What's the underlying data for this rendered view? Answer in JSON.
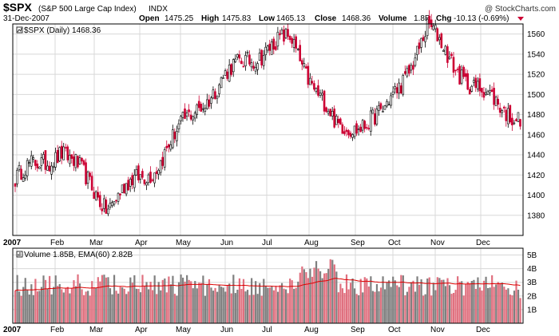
{
  "header": {
    "symbol": "$SPX",
    "name": "(S&P 500 Large Cap Index)",
    "exchange": "INDX",
    "date": "31-Dec-2007",
    "watermark": "@ StockCharts.com",
    "open_label": "Open",
    "open_value": "1475.25",
    "high_label": "High",
    "high_value": "1475.83",
    "low_label": "Low",
    "low_value": "1465.13",
    "close_label": "Close",
    "close_value": "1468.36",
    "volume_label": "Volume",
    "volume_value": "1.8B",
    "chg_label": "Chg",
    "chg_value": "-10.13 (-0.69%)"
  },
  "price_legend": "$SPX (Daily) 1468.36",
  "volume_legend": "Volume 1.85B, EMA(60) 2.82B",
  "colors": {
    "up": "#000000",
    "down": "#cc0033",
    "vol_up": "#7f7f7f",
    "vol_down": "#e0707f",
    "ema": "#dd0000",
    "grid": "#d8d8d8",
    "frame": "#000000"
  },
  "chart_data": [
    {
      "type": "candlestick",
      "title": "$SPX (Daily) 1468.36",
      "series": "$SPX",
      "ylim": [
        1360,
        1570
      ],
      "y_ticks": [
        "1380",
        "1400",
        "1420",
        "1440",
        "1460",
        "1480",
        "1500",
        "1520",
        "1540",
        "1560"
      ],
      "x_ticks": [
        "2007",
        "Feb",
        "Mar",
        "Apr",
        "May",
        "Jun",
        "Jul",
        "Aug",
        "Sep",
        "Oct",
        "Nov",
        "Dec"
      ],
      "grid": true,
      "monthly_anchor_closes": [
        {
          "month": "Jan",
          "close": 1416
        },
        {
          "month": "Feb",
          "close": 1445
        },
        {
          "month": "Mar",
          "close": 1390
        },
        {
          "month": "Apr",
          "close": 1427
        },
        {
          "month": "May",
          "close": 1490
        },
        {
          "month": "Jun",
          "close": 1535
        },
        {
          "month": "Jul",
          "close": 1555
        },
        {
          "month": "Aug",
          "close": 1465
        },
        {
          "month": "Sep",
          "close": 1478
        },
        {
          "month": "Oct",
          "close": 1565
        },
        {
          "month": "Nov",
          "close": 1505
        },
        {
          "month": "Dec",
          "close": 1478
        }
      ],
      "last": {
        "open": 1475.25,
        "high": 1475.83,
        "low": 1465.13,
        "close": 1468.36
      }
    },
    {
      "type": "bar",
      "title": "Volume 1.85B, EMA(60) 2.82B",
      "ylim": [
        0,
        5.5
      ],
      "y_ticks": [
        "1B",
        "2B",
        "3B",
        "4B",
        "5B"
      ],
      "x_ticks": [
        "2007",
        "Feb",
        "Mar",
        "Apr",
        "May",
        "Jun",
        "Jul",
        "Aug",
        "Sep",
        "Oct",
        "Nov",
        "Dec"
      ],
      "series": [
        {
          "name": "Volume",
          "last_value_b": 1.85
        },
        {
          "name": "EMA(60)",
          "last_value_b": 2.82
        }
      ]
    }
  ]
}
